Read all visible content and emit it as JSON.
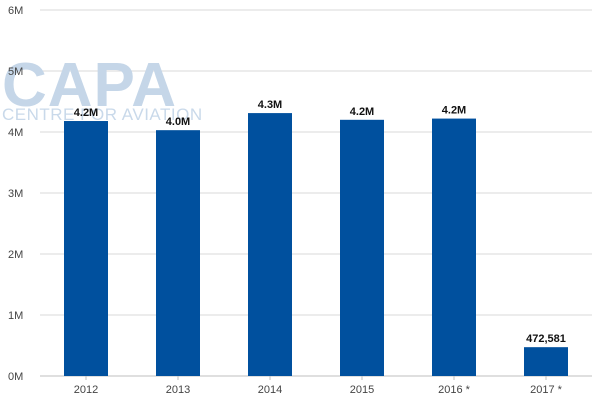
{
  "watermark": {
    "main": "CAPA",
    "sub": "CENTRE FOR AVIATION",
    "color": "#c5d6e8"
  },
  "chart_data": {
    "type": "bar",
    "categories": [
      "2012",
      "2013",
      "2014",
      "2015",
      "2016 *",
      "2017 *"
    ],
    "values": [
      4180000,
      4030000,
      4310000,
      4200000,
      4220000,
      472581
    ],
    "data_labels": [
      "4.2M",
      "4.0M",
      "4.3M",
      "4.2M",
      "4.2M",
      "472,581"
    ],
    "yticks": [
      0,
      1000000,
      2000000,
      3000000,
      4000000,
      5000000,
      6000000
    ],
    "ytick_labels": [
      "0M",
      "1M",
      "2M",
      "3M",
      "4M",
      "5M",
      "6M"
    ],
    "ylim": [
      0,
      6000000
    ],
    "grid": true,
    "bar_color": "#00509e",
    "grid_color": "#d9d9d9",
    "title": "",
    "xlabel": "",
    "ylabel": ""
  }
}
